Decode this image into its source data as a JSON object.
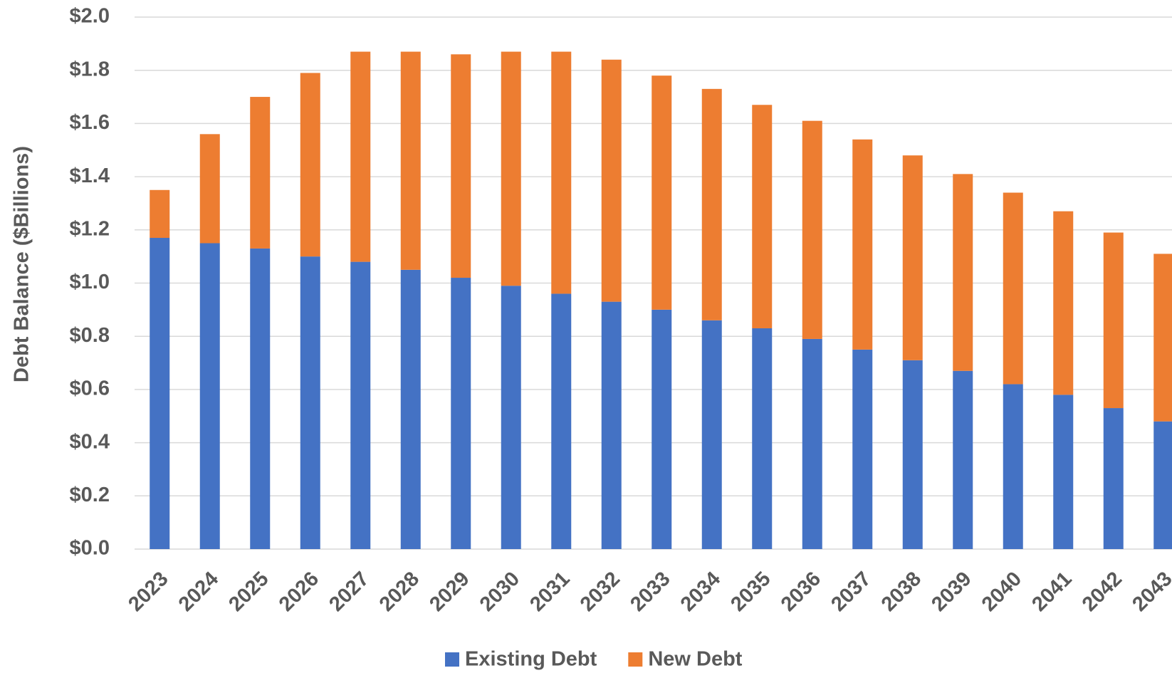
{
  "chart_data": {
    "type": "stacked_bar",
    "y_axis_label": "Debt Balance ($Billions)",
    "categories": [
      "2023",
      "2024",
      "2025",
      "2026",
      "2027",
      "2028",
      "2029",
      "2030",
      "2031",
      "2032",
      "2033",
      "2034",
      "2035",
      "2036",
      "2037",
      "2038",
      "2039",
      "2040",
      "2041",
      "2042",
      "2043"
    ],
    "series": [
      {
        "name": "Existing Debt",
        "color": "#4472c4",
        "values": [
          1.17,
          1.15,
          1.13,
          1.1,
          1.08,
          1.05,
          1.02,
          0.99,
          0.96,
          0.93,
          0.9,
          0.86,
          0.83,
          0.79,
          0.75,
          0.71,
          0.67,
          0.62,
          0.58,
          0.53,
          0.48
        ]
      },
      {
        "name": "New Debt",
        "color": "#ed7d31",
        "values": [
          0.18,
          0.41,
          0.57,
          0.69,
          0.79,
          0.82,
          0.84,
          0.88,
          0.91,
          0.91,
          0.88,
          0.87,
          0.84,
          0.82,
          0.79,
          0.77,
          0.74,
          0.72,
          0.69,
          0.66,
          0.63
        ]
      }
    ],
    "ylim": [
      0,
      2
    ],
    "yticks": [
      {
        "value": 0,
        "label": "$0.0"
      },
      {
        "value": 0.2,
        "label": "$0.2"
      },
      {
        "value": 0.4,
        "label": "$0.4"
      },
      {
        "value": 0.6,
        "label": "$0.6"
      },
      {
        "value": 0.8,
        "label": "$0.8"
      },
      {
        "value": 1.0,
        "label": "$1.0"
      },
      {
        "value": 1.2,
        "label": "$1.2"
      },
      {
        "value": 1.4,
        "label": "$1.4"
      },
      {
        "value": 1.6,
        "label": "$1.6"
      },
      {
        "value": 1.8,
        "label": "$1.8"
      },
      {
        "value": 2.0,
        "label": "$2.0"
      }
    ],
    "grid": true,
    "legend": "bottom"
  }
}
